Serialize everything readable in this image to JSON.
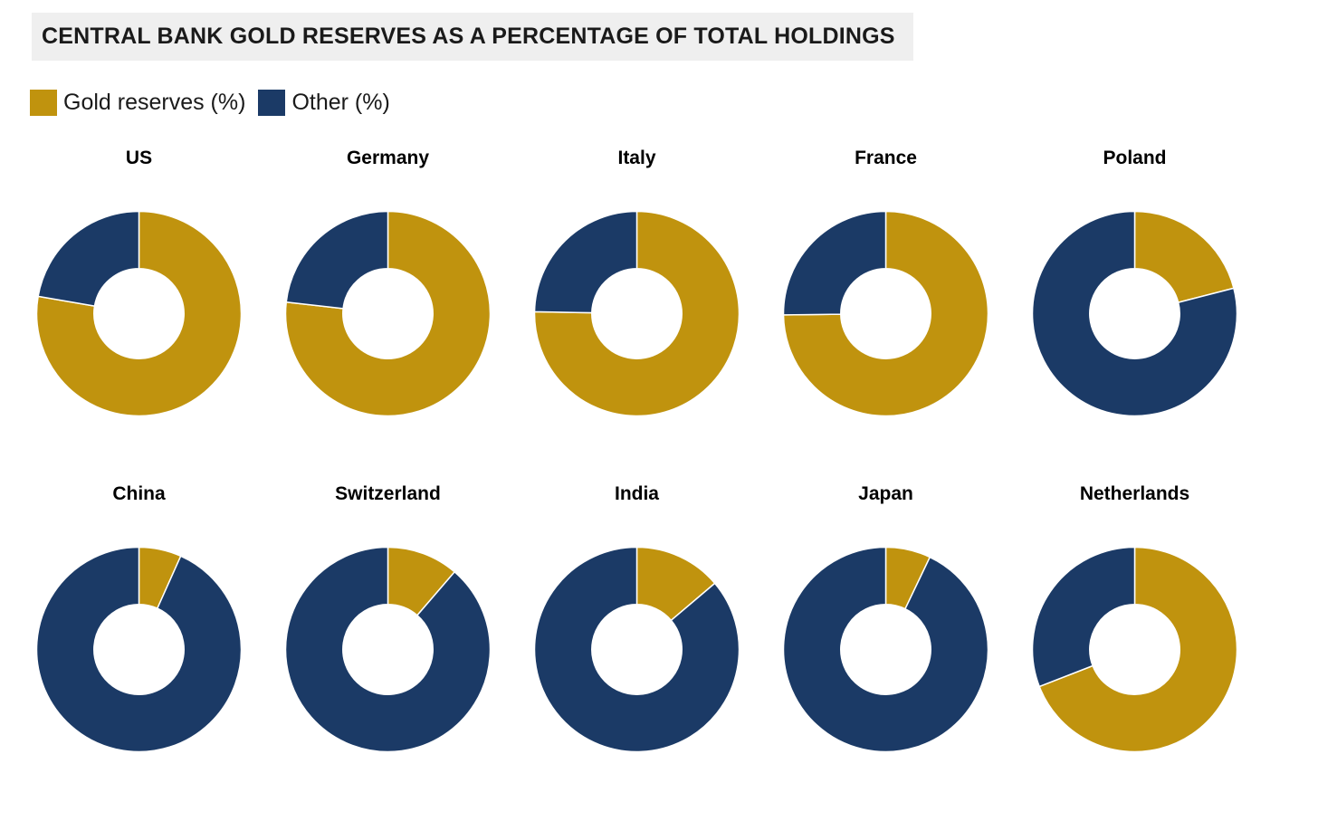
{
  "header": {
    "title": "CENTRAL BANK GOLD RESERVES AS A PERCENTAGE OF TOTAL HOLDINGS",
    "background": "#efefef"
  },
  "legend": {
    "items": [
      {
        "label": "Gold reserves (%)",
        "color": "#c0930e"
      },
      {
        "label": "Other (%)",
        "color": "#1b3a66"
      }
    ]
  },
  "chart_data": {
    "type": "pie",
    "variant": "donut_small_multiples",
    "title": "CENTRAL BANK GOLD RESERVES AS A PERCENTAGE OF TOTAL HOLDINGS",
    "legend": [
      "Gold reserves (%)",
      "Other (%)"
    ],
    "series_colors": {
      "gold": "#c0930e",
      "other": "#1b3a66"
    },
    "start_angle_deg": 0,
    "direction": "clockwise",
    "inner_radius_ratio": 0.44,
    "layout": {
      "rows": 2,
      "cols": 5
    },
    "countries": [
      {
        "name": "US",
        "gold_pct": 77.7,
        "other_pct": 22.3
      },
      {
        "name": "Germany",
        "gold_pct": 76.8,
        "other_pct": 23.2
      },
      {
        "name": "Italy",
        "gold_pct": 75.3,
        "other_pct": 24.7
      },
      {
        "name": "France",
        "gold_pct": 74.8,
        "other_pct": 25.2
      },
      {
        "name": "Poland",
        "gold_pct": 21.0,
        "other_pct": 79.0
      },
      {
        "name": "China",
        "gold_pct": 6.7,
        "other_pct": 93.3
      },
      {
        "name": "Switzerland",
        "gold_pct": 11.3,
        "other_pct": 88.7
      },
      {
        "name": "India",
        "gold_pct": 13.8,
        "other_pct": 86.2
      },
      {
        "name": "Japan",
        "gold_pct": 7.1,
        "other_pct": 92.9
      },
      {
        "name": "Netherlands",
        "gold_pct": 69.1,
        "other_pct": 30.9
      }
    ]
  }
}
